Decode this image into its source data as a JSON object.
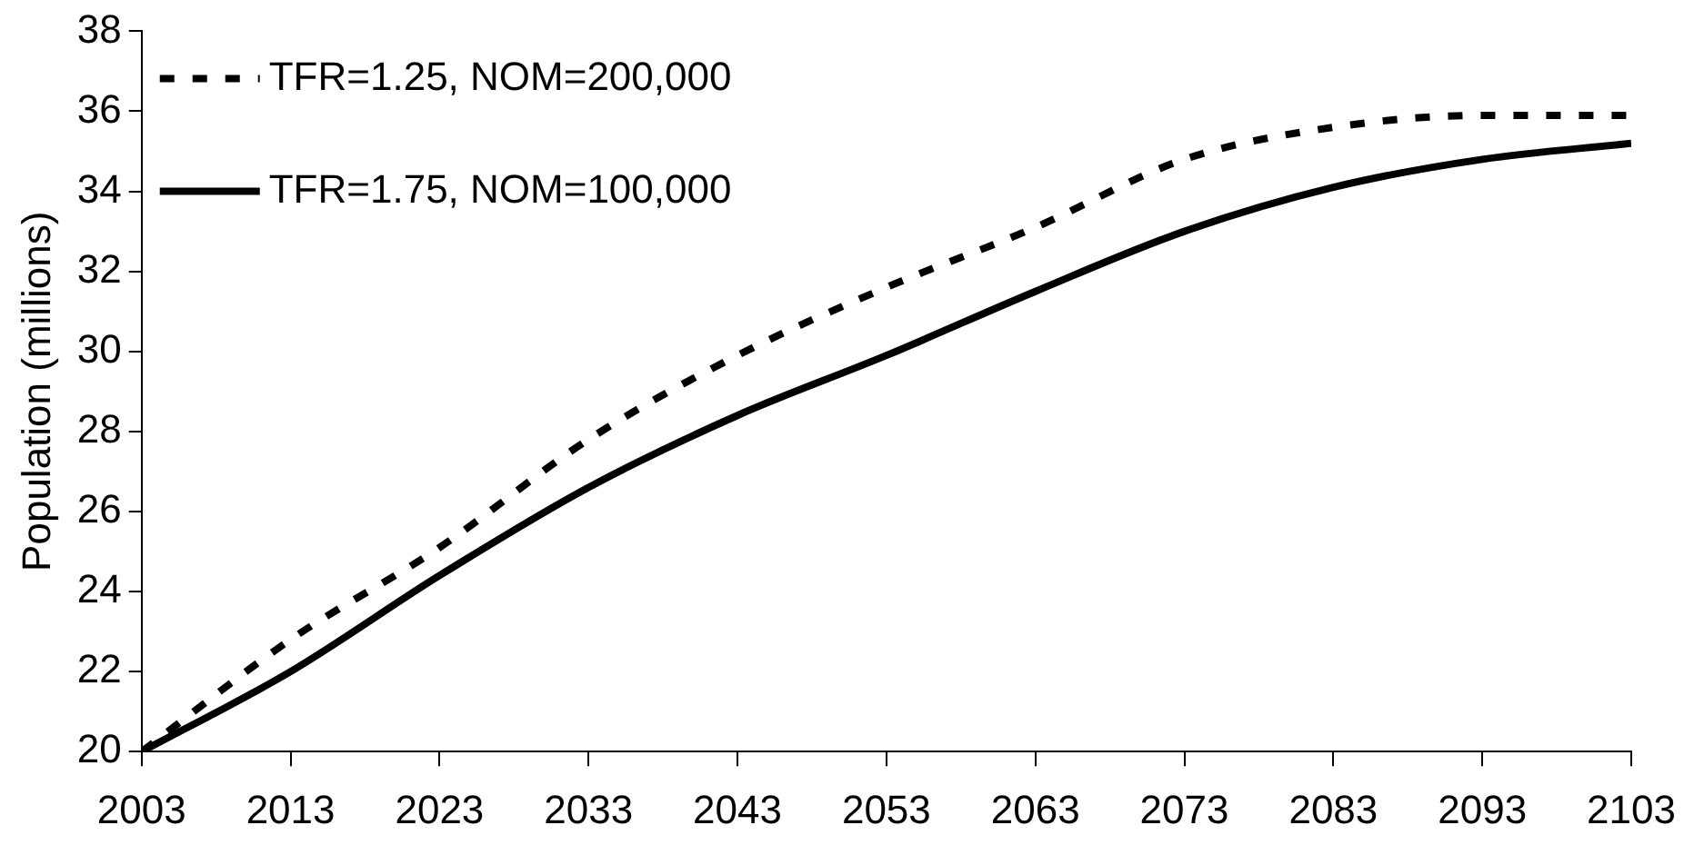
{
  "chart_data": {
    "type": "line",
    "ylabel": "Population (millions)",
    "x": [
      2003,
      2013,
      2023,
      2033,
      2043,
      2053,
      2063,
      2073,
      2083,
      2093,
      2103
    ],
    "series": [
      {
        "name": "TFR=1.25, NOM=200,000",
        "color": "#000000",
        "line_style": "dashed",
        "values": [
          20,
          22.8,
          25.1,
          27.8,
          29.9,
          31.6,
          33.1,
          34.8,
          35.6,
          35.9,
          35.9
        ]
      },
      {
        "name": "TFR=1.75, NOM=100,000",
        "color": "#000000",
        "line_style": "solid",
        "values": [
          20,
          22.0,
          24.4,
          26.6,
          28.4,
          29.9,
          31.5,
          33.0,
          34.1,
          34.8,
          35.2
        ]
      }
    ],
    "xlim": [
      2003,
      2103
    ],
    "xticks": [
      2003,
      2013,
      2023,
      2033,
      2043,
      2053,
      2063,
      2073,
      2083,
      2093,
      2103
    ],
    "ylim": [
      20,
      38
    ],
    "yticks": [
      20,
      22,
      24,
      26,
      28,
      30,
      32,
      34,
      36,
      38
    ],
    "grid": false,
    "legend": "top left",
    "marker": "none"
  }
}
